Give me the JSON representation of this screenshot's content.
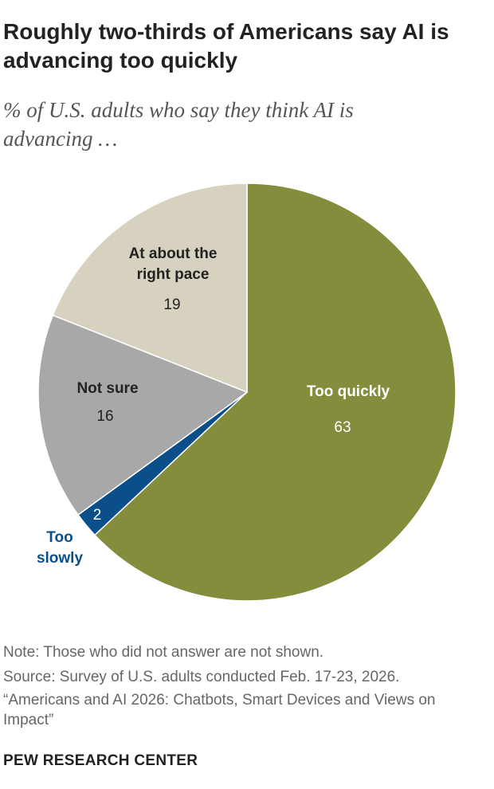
{
  "chart_data": {
    "type": "pie",
    "title": "Roughly two-thirds of Americans say AI is advancing too quickly",
    "subtitle": "% of U.S. adults who say they think AI is advancing …",
    "categories": [
      "Too quickly",
      "Too slowly",
      "Not sure",
      "At about the right pace"
    ],
    "values": [
      63,
      2,
      16,
      19
    ],
    "colors": [
      "#838d3b",
      "#0b4f8a",
      "#a8a8a8",
      "#d6d2bf"
    ],
    "note": "Note: Those who did not answer are not shown.",
    "source": "Source: Survey of U.S. adults conducted Feb. 17-23, 2026.",
    "report": "“Americans and AI 2026: Chatbots, Smart Devices and Views on Impact”",
    "footer": "PEW RESEARCH CENTER"
  }
}
